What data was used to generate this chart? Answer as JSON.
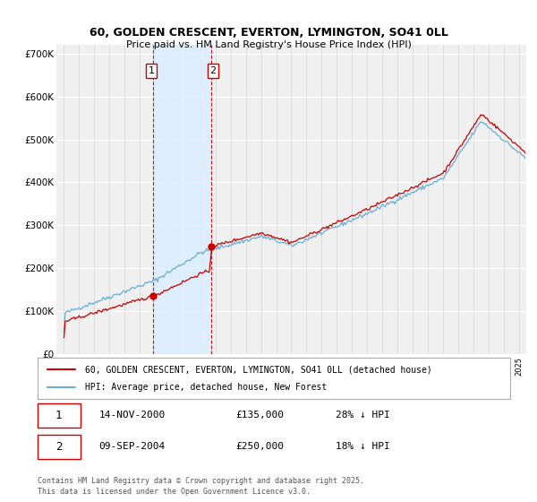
{
  "title": "60, GOLDEN CRESCENT, EVERTON, LYMINGTON, SO41 0LL",
  "subtitle": "Price paid vs. HM Land Registry's House Price Index (HPI)",
  "xlim": [
    1994.5,
    2025.5
  ],
  "ylim": [
    0,
    720000
  ],
  "yticks": [
    0,
    100000,
    200000,
    300000,
    400000,
    500000,
    600000,
    700000
  ],
  "ytick_labels": [
    "£0",
    "£100K",
    "£200K",
    "£300K",
    "£400K",
    "£500K",
    "£600K",
    "£700K"
  ],
  "hpi_color": "#6baed6",
  "price_color": "#cc0000",
  "sale1_date": 2000.87,
  "sale1_price": 135000,
  "sale2_date": 2004.69,
  "sale2_price": 250000,
  "shade_color": "#ddeeff",
  "vline_color": "#cc0000",
  "legend1": "60, GOLDEN CRESCENT, EVERTON, LYMINGTON, SO41 0LL (detached house)",
  "legend2": "HPI: Average price, detached house, New Forest",
  "label1_date": "14-NOV-2000",
  "label1_price": "£135,000",
  "label1_hpi": "28% ↓ HPI",
  "label2_date": "09-SEP-2004",
  "label2_price": "£250,000",
  "label2_hpi": "18% ↓ HPI",
  "footnote": "Contains HM Land Registry data © Crown copyright and database right 2025.\nThis data is licensed under the Open Government Licence v3.0.",
  "background_color": "#ffffff",
  "plot_bg_color": "#f0f0f0"
}
